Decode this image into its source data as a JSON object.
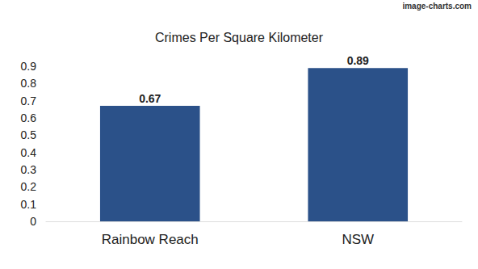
{
  "chart_data": {
    "type": "bar",
    "title": "Crimes Per Square Kilometer",
    "categories": [
      "Rainbow Reach",
      "NSW"
    ],
    "values": [
      0.67,
      0.89
    ],
    "color": "#2b5189",
    "ylim": [
      0,
      0.9
    ],
    "yticks": [
      0,
      0.1,
      0.2,
      0.3,
      0.4,
      0.5,
      0.6,
      0.7,
      0.8,
      0.9
    ],
    "grid": false,
    "data_labels": true,
    "annotations": [
      "image-charts.com"
    ]
  }
}
